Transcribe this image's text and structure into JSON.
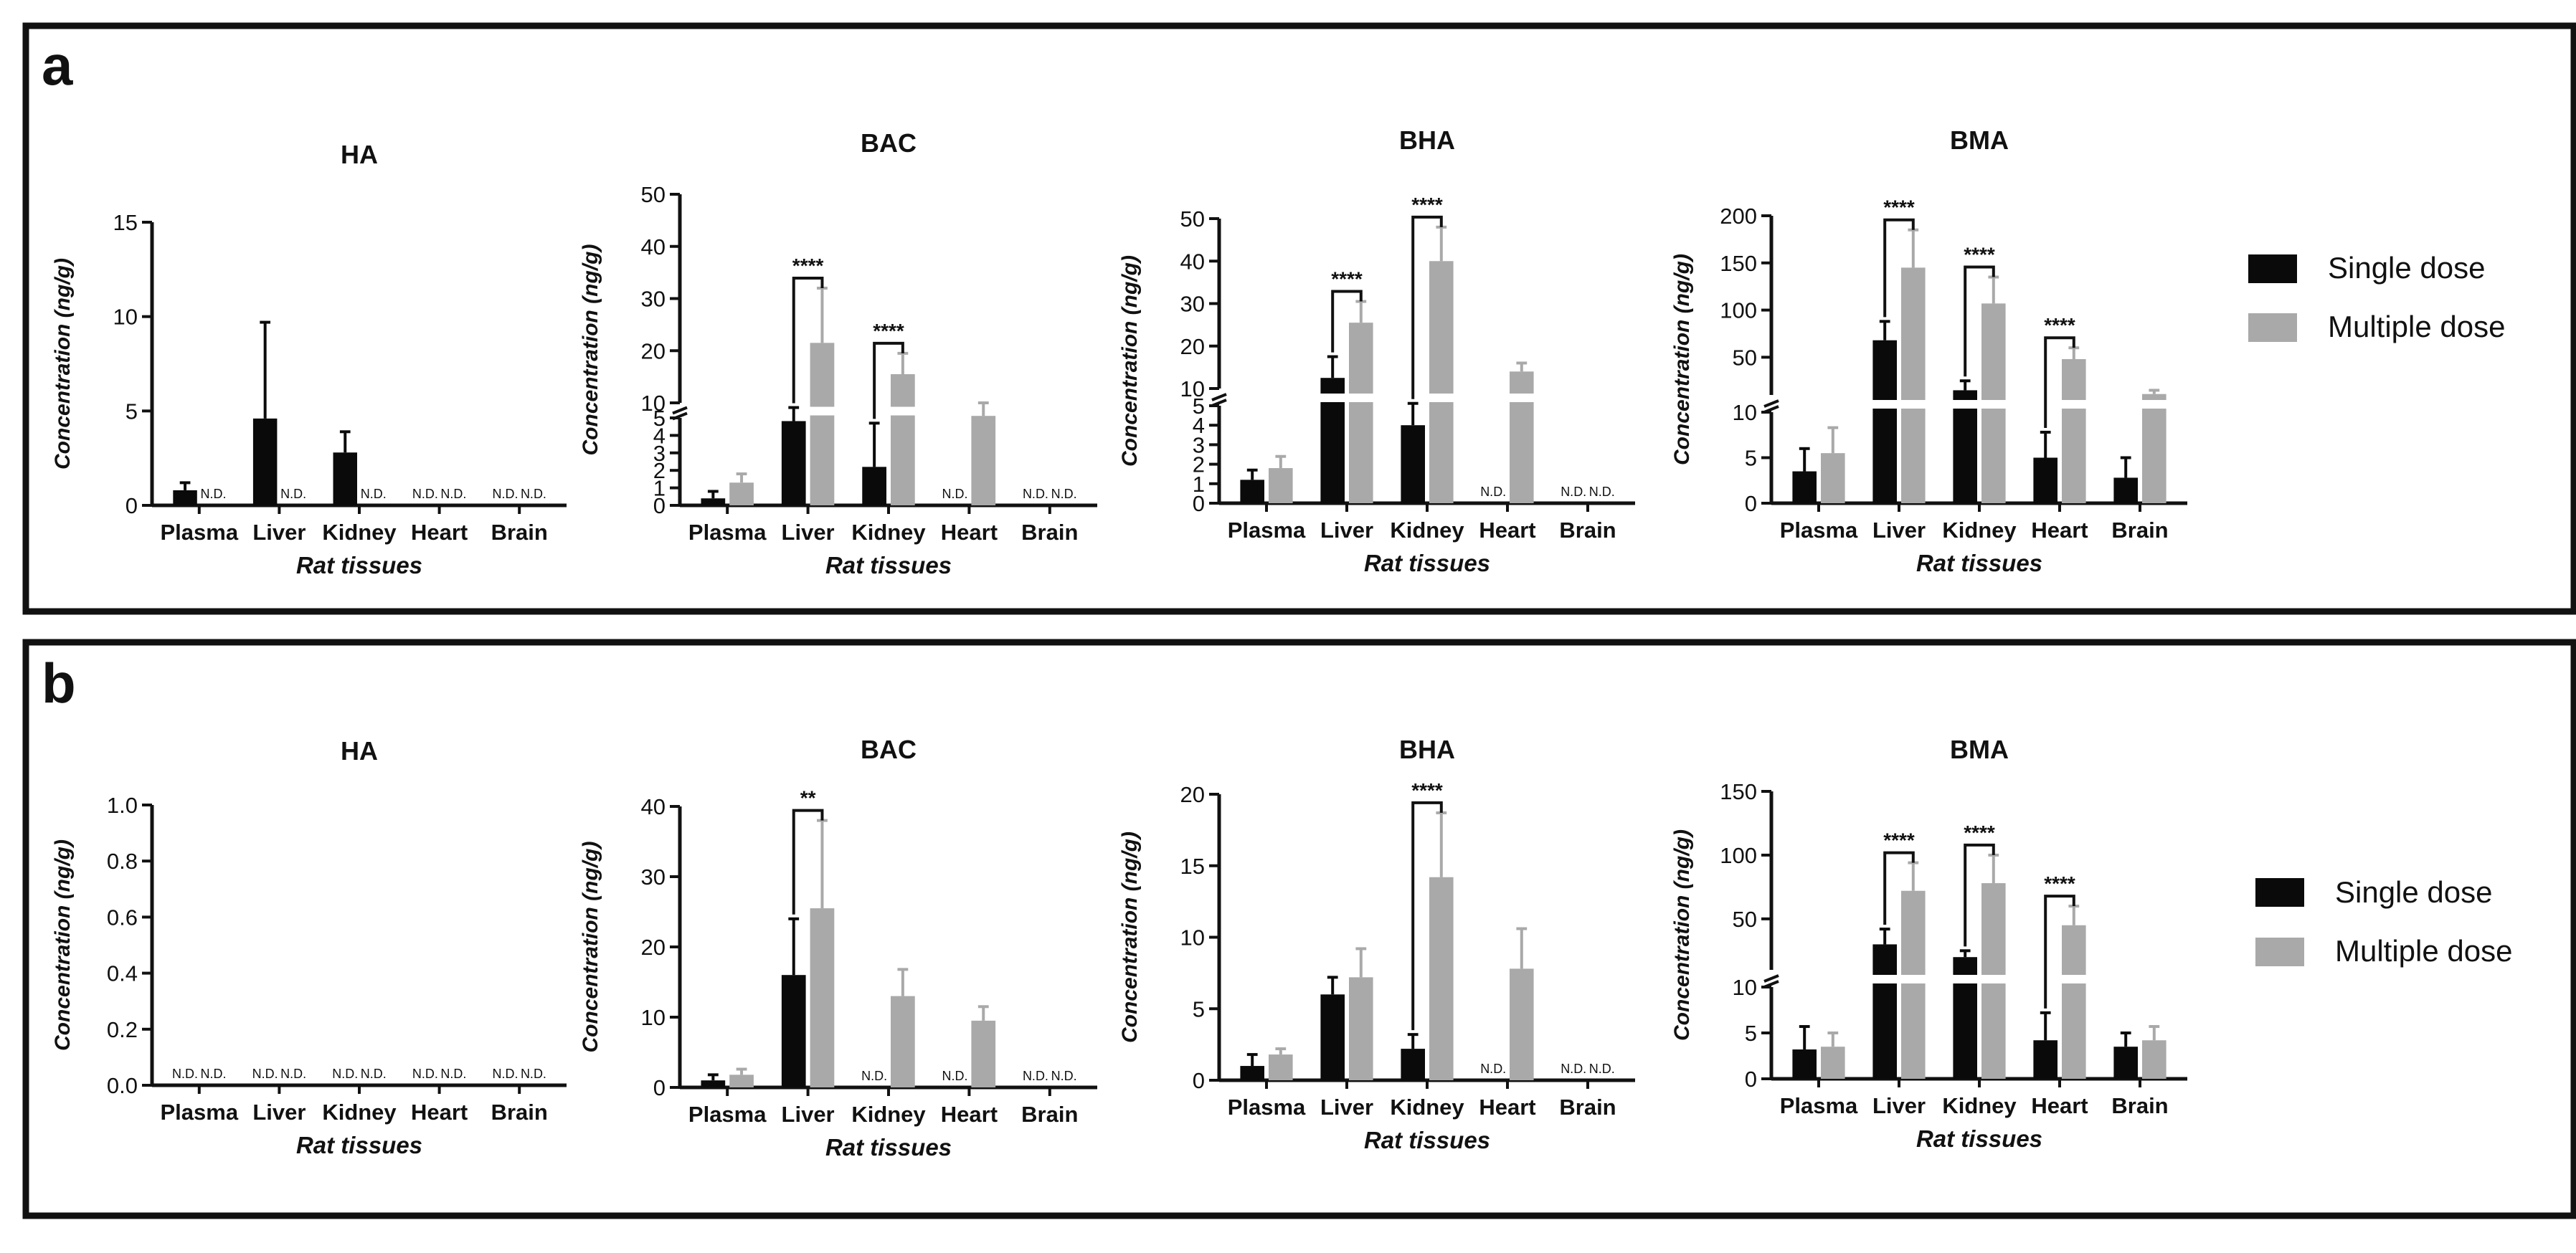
{
  "legend": {
    "single_label": "Single dose",
    "multiple_label": "Multiple dose"
  },
  "colors": {
    "single": "#0a0a0a",
    "multiple": "#a9a9a9",
    "axis": "#111111",
    "frame": "#111111"
  },
  "panels": [
    {
      "letter": "a",
      "xlabel": "Rat tissues",
      "categories": [
        "Plasma",
        "Liver",
        "Kidney",
        "Heart",
        "Brain"
      ]
    },
    {
      "letter": "b",
      "xlabel": "Rat tissues",
      "categories": [
        "Plasma",
        "Liver",
        "Kidney",
        "Heart",
        "Brain"
      ]
    }
  ],
  "nd_label": "N.D.",
  "chart_data": [
    {
      "panel": "a",
      "type": "bar",
      "title": "HA",
      "ylabel": "Concentration (ng/g)",
      "xlabel": "Rat tissues",
      "categories": [
        "Plasma",
        "Liver",
        "Kidney",
        "Heart",
        "Brain"
      ],
      "ylim": [
        0,
        15
      ],
      "yticks": [
        0,
        5,
        10,
        15
      ],
      "series": [
        {
          "name": "Single dose",
          "values": [
            0.8,
            4.6,
            2.8,
            null,
            null
          ],
          "errors": [
            0.4,
            5.1,
            1.1,
            null,
            null
          ]
        },
        {
          "name": "Multiple dose",
          "values": [
            null,
            null,
            null,
            null,
            null
          ],
          "errors": [
            null,
            null,
            null,
            null,
            null
          ]
        }
      ],
      "significance": []
    },
    {
      "panel": "a",
      "type": "bar",
      "title": "BAC",
      "ylabel": "Concentration (ng/g)",
      "xlabel": "Rat tissues",
      "categories": [
        "Plasma",
        "Liver",
        "Kidney",
        "Heart",
        "Brain"
      ],
      "broken_axis": {
        "break_low": 5,
        "break_high": 10,
        "lower_ticks": [
          0,
          1,
          2,
          3,
          4,
          5
        ],
        "upper_ticks": [
          10,
          20,
          30,
          40,
          50
        ],
        "lower_max": 5,
        "upper_max": 50
      },
      "series": [
        {
          "name": "Single dose",
          "values": [
            0.4,
            6.5,
            2.2,
            null,
            null
          ],
          "errors": [
            0.4,
            2.6,
            2.5,
            null,
            null
          ]
        },
        {
          "name": "Multiple dose",
          "values": [
            1.3,
            21.5,
            15.5,
            7.5,
            null
          ],
          "errors": [
            0.5,
            10.5,
            4.0,
            2.5,
            null
          ]
        }
      ],
      "significance": [
        {
          "category": "Liver",
          "label": "****"
        },
        {
          "category": "Kidney",
          "label": "****"
        }
      ]
    },
    {
      "panel": "a",
      "type": "bar",
      "title": "BHA",
      "ylabel": "Concentration (ng/g)",
      "xlabel": "Rat tissues",
      "categories": [
        "Plasma",
        "Liver",
        "Kidney",
        "Heart",
        "Brain"
      ],
      "broken_axis": {
        "break_low": 5,
        "break_high": 10,
        "lower_ticks": [
          0,
          1,
          2,
          3,
          4,
          5
        ],
        "upper_ticks": [
          10,
          20,
          30,
          40,
          50
        ],
        "lower_max": 5,
        "upper_max": 50
      },
      "series": [
        {
          "name": "Single dose",
          "values": [
            1.2,
            12.5,
            4.0,
            null,
            null
          ],
          "errors": [
            0.5,
            5.0,
            2.5,
            null,
            null
          ]
        },
        {
          "name": "Multiple dose",
          "values": [
            1.8,
            25.5,
            40.0,
            14.0,
            null
          ],
          "errors": [
            0.6,
            5.0,
            8.0,
            2.0,
            null
          ]
        }
      ],
      "significance": [
        {
          "category": "Liver",
          "label": "****"
        },
        {
          "category": "Kidney",
          "label": "****"
        }
      ]
    },
    {
      "panel": "a",
      "type": "bar",
      "title": "BMA",
      "ylabel": "Concentration (ng/g)",
      "xlabel": "Rat tissues",
      "categories": [
        "Plasma",
        "Liver",
        "Kidney",
        "Heart",
        "Brain"
      ],
      "broken_axis": {
        "break_low": 10,
        "break_high": 10,
        "lower_ticks": [
          0,
          5,
          10
        ],
        "upper_ticks": [
          50,
          100,
          150,
          200
        ],
        "lower_max": 10,
        "upper_max": 200
      },
      "series": [
        {
          "name": "Single dose",
          "values": [
            3.5,
            68,
            15,
            5.0,
            2.8
          ],
          "errors": [
            2.5,
            20,
            10,
            2.8,
            2.2
          ]
        },
        {
          "name": "Multiple dose",
          "values": [
            5.5,
            145,
            107,
            48,
            11
          ],
          "errors": [
            2.8,
            40,
            28,
            12,
            4
          ]
        }
      ],
      "significance": [
        {
          "category": "Liver",
          "label": "****"
        },
        {
          "category": "Kidney",
          "label": "****"
        },
        {
          "category": "Heart",
          "label": "****"
        }
      ]
    },
    {
      "panel": "b",
      "type": "bar",
      "title": "HA",
      "ylabel": "Concentration (ng/g)",
      "xlabel": "Rat tissues",
      "categories": [
        "Plasma",
        "Liver",
        "Kidney",
        "Heart",
        "Brain"
      ],
      "ylim": [
        0,
        1.0
      ],
      "yticks": [
        0.0,
        0.2,
        0.4,
        0.6,
        0.8,
        1.0
      ],
      "series": [
        {
          "name": "Single dose",
          "values": [
            null,
            null,
            null,
            null,
            null
          ],
          "errors": [
            null,
            null,
            null,
            null,
            null
          ]
        },
        {
          "name": "Multiple dose",
          "values": [
            null,
            null,
            null,
            null,
            null
          ],
          "errors": [
            null,
            null,
            null,
            null,
            null
          ]
        }
      ],
      "significance": []
    },
    {
      "panel": "b",
      "type": "bar",
      "title": "BAC",
      "ylabel": "Concentration (ng/g)",
      "xlabel": "Rat tissues",
      "categories": [
        "Plasma",
        "Liver",
        "Kidney",
        "Heart",
        "Brain"
      ],
      "ylim": [
        0,
        40
      ],
      "yticks": [
        0,
        10,
        20,
        30,
        40
      ],
      "series": [
        {
          "name": "Single dose",
          "values": [
            1.0,
            16,
            null,
            null,
            null
          ],
          "errors": [
            0.8,
            8,
            null,
            null,
            null
          ]
        },
        {
          "name": "Multiple dose",
          "values": [
            1.8,
            25.5,
            13,
            9.5,
            null
          ],
          "errors": [
            0.8,
            12.5,
            3.8,
            2.0,
            null
          ]
        }
      ],
      "significance": [
        {
          "category": "Liver",
          "label": "**"
        }
      ]
    },
    {
      "panel": "b",
      "type": "bar",
      "title": "BHA",
      "ylabel": "Concentration (ng/g)",
      "xlabel": "Rat tissues",
      "categories": [
        "Plasma",
        "Liver",
        "Kidney",
        "Heart",
        "Brain"
      ],
      "ylim": [
        0,
        20
      ],
      "yticks": [
        0,
        5,
        10,
        15,
        20
      ],
      "series": [
        {
          "name": "Single dose",
          "values": [
            1.0,
            6.0,
            2.2,
            null,
            null
          ],
          "errors": [
            0.8,
            1.2,
            1.0,
            null,
            null
          ]
        },
        {
          "name": "Multiple dose",
          "values": [
            1.8,
            7.2,
            14.2,
            7.8,
            null
          ],
          "errors": [
            0.4,
            2.0,
            4.5,
            2.8,
            null
          ]
        }
      ],
      "significance": [
        {
          "category": "Kidney",
          "label": "****"
        }
      ]
    },
    {
      "panel": "b",
      "type": "bar",
      "title": "BMA",
      "ylabel": "Concentration (ng/g)",
      "xlabel": "Rat tissues",
      "categories": [
        "Plasma",
        "Liver",
        "Kidney",
        "Heart",
        "Brain"
      ],
      "broken_axis": {
        "break_low": 10,
        "break_high": 10,
        "lower_ticks": [
          0,
          5,
          10
        ],
        "upper_ticks": [
          50,
          100,
          150
        ],
        "lower_max": 10,
        "upper_max": 150
      },
      "series": [
        {
          "name": "Single dose",
          "values": [
            3.2,
            30,
            20,
            4.2,
            3.5
          ],
          "errors": [
            2.5,
            12,
            5,
            3.0,
            1.5
          ]
        },
        {
          "name": "Multiple dose",
          "values": [
            3.5,
            72,
            78,
            45,
            4.2
          ],
          "errors": [
            1.5,
            22,
            22,
            15,
            1.5
          ]
        }
      ],
      "significance": [
        {
          "category": "Liver",
          "label": "****"
        },
        {
          "category": "Kidney",
          "label": "****"
        },
        {
          "category": "Heart",
          "label": "****"
        }
      ]
    }
  ]
}
